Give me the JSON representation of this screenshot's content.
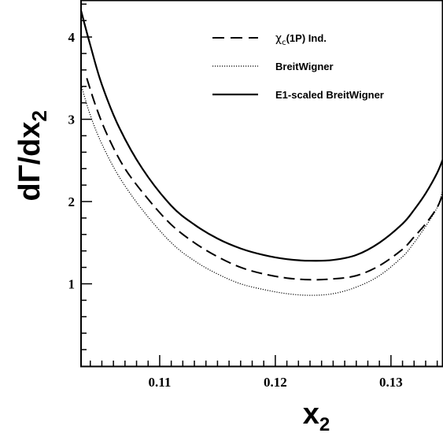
{
  "chart_data": {
    "type": "line",
    "xlabel": "x",
    "xlabel_sub": "2",
    "ylabel": "dΓ/dx",
    "ylabel_sub": "2",
    "xlim": [
      0.1032,
      0.1345
    ],
    "ylim": [
      0,
      4.45
    ],
    "x_ticks": [
      {
        "value": 0.11,
        "label": "0.11"
      },
      {
        "value": 0.12,
        "label": "0.12"
      },
      {
        "value": 0.13,
        "label": "0.13"
      }
    ],
    "y_ticks": [
      {
        "value": 1,
        "label": "1"
      },
      {
        "value": 2,
        "label": "2"
      },
      {
        "value": 3,
        "label": "3"
      },
      {
        "value": 4,
        "label": "4"
      }
    ],
    "legend_position": "top-right",
    "series": [
      {
        "name": "χc(1P) Ind.",
        "name_main": "χ",
        "name_sub": "c",
        "name_rest": "(1P) Ind.",
        "style": "dashed",
        "x": [
          0.1037,
          0.1045,
          0.1055,
          0.107,
          0.109,
          0.111,
          0.113,
          0.115,
          0.117,
          0.119,
          0.121,
          0.123,
          0.125,
          0.127,
          0.129,
          0.131,
          0.132,
          0.133,
          0.134,
          0.1345
        ],
        "y": [
          3.5,
          3.15,
          2.8,
          2.4,
          2.03,
          1.72,
          1.5,
          1.33,
          1.2,
          1.12,
          1.07,
          1.05,
          1.06,
          1.1,
          1.22,
          1.42,
          1.57,
          1.73,
          1.93,
          2.1
        ]
      },
      {
        "name": "BreitWigner",
        "style": "dotted",
        "x": [
          0.1032,
          0.104,
          0.105,
          0.1065,
          0.1085,
          0.111,
          0.113,
          0.115,
          0.117,
          0.119,
          0.121,
          0.123,
          0.125,
          0.127,
          0.129,
          0.131,
          0.132,
          0.133,
          0.134,
          0.1345
        ],
        "y": [
          3.42,
          3.05,
          2.7,
          2.3,
          1.9,
          1.5,
          1.28,
          1.12,
          1.0,
          0.93,
          0.88,
          0.86,
          0.88,
          0.96,
          1.1,
          1.33,
          1.5,
          1.7,
          1.93,
          2.15
        ]
      },
      {
        "name": "E1-scaled BreitWigner",
        "style": "solid",
        "x": [
          0.1032,
          0.104,
          0.105,
          0.1065,
          0.1085,
          0.111,
          0.113,
          0.115,
          0.117,
          0.119,
          0.121,
          0.123,
          0.125,
          0.127,
          0.129,
          0.131,
          0.132,
          0.133,
          0.134,
          0.1345
        ],
        "y": [
          4.32,
          3.9,
          3.42,
          2.9,
          2.4,
          1.95,
          1.72,
          1.55,
          1.43,
          1.35,
          1.3,
          1.28,
          1.29,
          1.35,
          1.5,
          1.73,
          1.9,
          2.1,
          2.35,
          2.52
        ]
      }
    ]
  }
}
